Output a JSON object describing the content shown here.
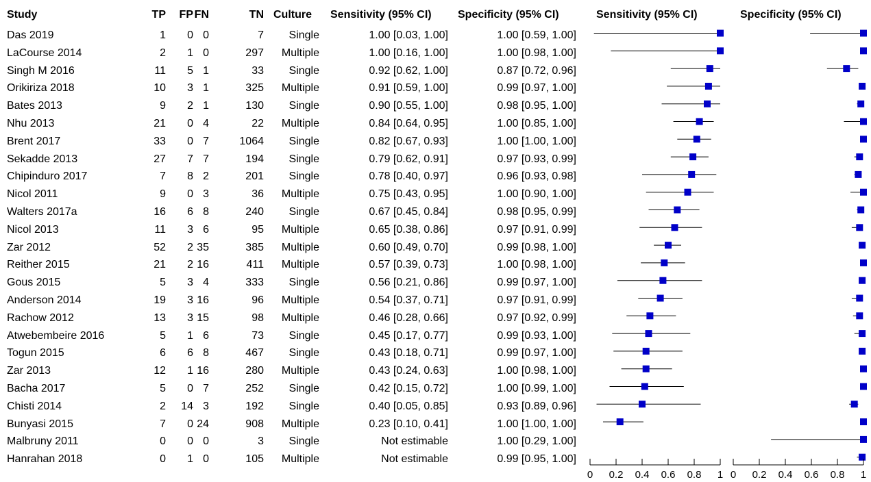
{
  "headers": {
    "study": "Study",
    "tp": "TP",
    "fp": "FP",
    "fn": "FN",
    "tn": "TN",
    "culture": "Culture",
    "sens_ci": "Sensitivity (95% CI)",
    "spec_ci": "Specificity (95% CI)",
    "sens_plot": "Sensitivity (95% CI)",
    "spec_plot": "Specificity (95% CI)"
  },
  "colors": {
    "marker": "#0000c8",
    "line": "#000000"
  },
  "chart_data": {
    "type": "forest",
    "axis_ticks": [
      "0",
      "0.2",
      "0.4",
      "0.6",
      "0.8",
      "1"
    ],
    "xlim": [
      0,
      1
    ],
    "rows": [
      {
        "study": "Das 2019",
        "tp": "1",
        "fp": "0",
        "fn": "0",
        "tn": "7",
        "culture": "Single",
        "sens_text": "1.00 [0.03, 1.00]",
        "spec_text": "1.00 [0.59, 1.00]",
        "sens": 1.0,
        "sens_lo": 0.03,
        "sens_hi": 1.0,
        "spec": 1.0,
        "spec_lo": 0.59,
        "spec_hi": 1.0
      },
      {
        "study": "LaCourse 2014",
        "tp": "2",
        "fp": "1",
        "fn": "0",
        "tn": "297",
        "culture": "Multiple",
        "sens_text": "1.00 [0.16, 1.00]",
        "spec_text": "1.00 [0.98, 1.00]",
        "sens": 1.0,
        "sens_lo": 0.16,
        "sens_hi": 1.0,
        "spec": 1.0,
        "spec_lo": 0.98,
        "spec_hi": 1.0
      },
      {
        "study": "Singh M 2016",
        "tp": "11",
        "fp": "5",
        "fn": "1",
        "tn": "33",
        "culture": "Single",
        "sens_text": "0.92 [0.62, 1.00]",
        "spec_text": "0.87 [0.72, 0.96]",
        "sens": 0.92,
        "sens_lo": 0.62,
        "sens_hi": 1.0,
        "spec": 0.87,
        "spec_lo": 0.72,
        "spec_hi": 0.96
      },
      {
        "study": "Orikiriza 2018",
        "tp": "10",
        "fp": "3",
        "fn": "1",
        "tn": "325",
        "culture": "Multiple",
        "sens_text": "0.91 [0.59, 1.00]",
        "spec_text": "0.99 [0.97, 1.00]",
        "sens": 0.91,
        "sens_lo": 0.59,
        "sens_hi": 1.0,
        "spec": 0.99,
        "spec_lo": 0.97,
        "spec_hi": 1.0
      },
      {
        "study": "Bates 2013",
        "tp": "9",
        "fp": "2",
        "fn": "1",
        "tn": "130",
        "culture": "Single",
        "sens_text": "0.90 [0.55, 1.00]",
        "spec_text": "0.98 [0.95, 1.00]",
        "sens": 0.9,
        "sens_lo": 0.55,
        "sens_hi": 1.0,
        "spec": 0.98,
        "spec_lo": 0.95,
        "spec_hi": 1.0
      },
      {
        "study": "Nhu 2013",
        "tp": "21",
        "fp": "0",
        "fn": "4",
        "tn": "22",
        "culture": "Multiple",
        "sens_text": "0.84 [0.64, 0.95]",
        "spec_text": "1.00 [0.85, 1.00]",
        "sens": 0.84,
        "sens_lo": 0.64,
        "sens_hi": 0.95,
        "spec": 1.0,
        "spec_lo": 0.85,
        "spec_hi": 1.0
      },
      {
        "study": "Brent 2017",
        "tp": "33",
        "fp": "0",
        "fn": "7",
        "tn": "1064",
        "culture": "Single",
        "sens_text": "0.82 [0.67, 0.93]",
        "spec_text": "1.00 [1.00, 1.00]",
        "sens": 0.82,
        "sens_lo": 0.67,
        "sens_hi": 0.93,
        "spec": 1.0,
        "spec_lo": 1.0,
        "spec_hi": 1.0
      },
      {
        "study": "Sekadde 2013",
        "tp": "27",
        "fp": "7",
        "fn": "7",
        "tn": "194",
        "culture": "Single",
        "sens_text": "0.79 [0.62, 0.91]",
        "spec_text": "0.97 [0.93, 0.99]",
        "sens": 0.79,
        "sens_lo": 0.62,
        "sens_hi": 0.91,
        "spec": 0.97,
        "spec_lo": 0.93,
        "spec_hi": 0.99
      },
      {
        "study": "Chipinduro 2017",
        "tp": "7",
        "fp": "8",
        "fn": "2",
        "tn": "201",
        "culture": "Single",
        "sens_text": "0.78 [0.40, 0.97]",
        "spec_text": "0.96 [0.93, 0.98]",
        "sens": 0.78,
        "sens_lo": 0.4,
        "sens_hi": 0.97,
        "spec": 0.96,
        "spec_lo": 0.93,
        "spec_hi": 0.98
      },
      {
        "study": "Nicol 2011",
        "tp": "9",
        "fp": "0",
        "fn": "3",
        "tn": "36",
        "culture": "Multiple",
        "sens_text": "0.75 [0.43, 0.95]",
        "spec_text": "1.00 [0.90, 1.00]",
        "sens": 0.75,
        "sens_lo": 0.43,
        "sens_hi": 0.95,
        "spec": 1.0,
        "spec_lo": 0.9,
        "spec_hi": 1.0
      },
      {
        "study": "Walters 2017a",
        "tp": "16",
        "fp": "6",
        "fn": "8",
        "tn": "240",
        "culture": "Single",
        "sens_text": "0.67 [0.45, 0.84]",
        "spec_text": "0.98 [0.95, 0.99]",
        "sens": 0.67,
        "sens_lo": 0.45,
        "sens_hi": 0.84,
        "spec": 0.98,
        "spec_lo": 0.95,
        "spec_hi": 0.99
      },
      {
        "study": "Nicol 2013",
        "tp": "11",
        "fp": "3",
        "fn": "6",
        "tn": "95",
        "culture": "Multiple",
        "sens_text": "0.65 [0.38, 0.86]",
        "spec_text": "0.97 [0.91, 0.99]",
        "sens": 0.65,
        "sens_lo": 0.38,
        "sens_hi": 0.86,
        "spec": 0.97,
        "spec_lo": 0.91,
        "spec_hi": 0.99
      },
      {
        "study": "Zar 2012",
        "tp": "52",
        "fp": "2",
        "fn": "35",
        "tn": "385",
        "culture": "Multiple",
        "sens_text": "0.60 [0.49, 0.70]",
        "spec_text": "0.99 [0.98, 1.00]",
        "sens": 0.6,
        "sens_lo": 0.49,
        "sens_hi": 0.7,
        "spec": 0.99,
        "spec_lo": 0.98,
        "spec_hi": 1.0
      },
      {
        "study": "Reither 2015",
        "tp": "21",
        "fp": "2",
        "fn": "16",
        "tn": "411",
        "culture": "Multiple",
        "sens_text": "0.57 [0.39, 0.73]",
        "spec_text": "1.00 [0.98, 1.00]",
        "sens": 0.57,
        "sens_lo": 0.39,
        "sens_hi": 0.73,
        "spec": 1.0,
        "spec_lo": 0.98,
        "spec_hi": 1.0
      },
      {
        "study": "Gous 2015",
        "tp": "5",
        "fp": "3",
        "fn": "4",
        "tn": "333",
        "culture": "Single",
        "sens_text": "0.56 [0.21, 0.86]",
        "spec_text": "0.99 [0.97, 1.00]",
        "sens": 0.56,
        "sens_lo": 0.21,
        "sens_hi": 0.86,
        "spec": 0.99,
        "spec_lo": 0.97,
        "spec_hi": 1.0
      },
      {
        "study": "Anderson 2014",
        "tp": "19",
        "fp": "3",
        "fn": "16",
        "tn": "96",
        "culture": "Multiple",
        "sens_text": "0.54 [0.37, 0.71]",
        "spec_text": "0.97 [0.91, 0.99]",
        "sens": 0.54,
        "sens_lo": 0.37,
        "sens_hi": 0.71,
        "spec": 0.97,
        "spec_lo": 0.91,
        "spec_hi": 0.99
      },
      {
        "study": "Rachow 2012",
        "tp": "13",
        "fp": "3",
        "fn": "15",
        "tn": "98",
        "culture": "Multiple",
        "sens_text": "0.46 [0.28, 0.66]",
        "spec_text": "0.97 [0.92, 0.99]",
        "sens": 0.46,
        "sens_lo": 0.28,
        "sens_hi": 0.66,
        "spec": 0.97,
        "spec_lo": 0.92,
        "spec_hi": 0.99
      },
      {
        "study": "Atwebembeire 2016",
        "tp": "5",
        "fp": "1",
        "fn": "6",
        "tn": "73",
        "culture": "Single",
        "sens_text": "0.45 [0.17, 0.77]",
        "spec_text": "0.99 [0.93, 1.00]",
        "sens": 0.45,
        "sens_lo": 0.17,
        "sens_hi": 0.77,
        "spec": 0.99,
        "spec_lo": 0.93,
        "spec_hi": 1.0
      },
      {
        "study": "Togun 2015",
        "tp": "6",
        "fp": "6",
        "fn": "8",
        "tn": "467",
        "culture": "Single",
        "sens_text": "0.43 [0.18, 0.71]",
        "spec_text": "0.99 [0.97, 1.00]",
        "sens": 0.43,
        "sens_lo": 0.18,
        "sens_hi": 0.71,
        "spec": 0.99,
        "spec_lo": 0.97,
        "spec_hi": 1.0
      },
      {
        "study": "Zar 2013",
        "tp": "12",
        "fp": "1",
        "fn": "16",
        "tn": "280",
        "culture": "Multiple",
        "sens_text": "0.43 [0.24, 0.63]",
        "spec_text": "1.00 [0.98, 1.00]",
        "sens": 0.43,
        "sens_lo": 0.24,
        "sens_hi": 0.63,
        "spec": 1.0,
        "spec_lo": 0.98,
        "spec_hi": 1.0
      },
      {
        "study": "Bacha 2017",
        "tp": "5",
        "fp": "0",
        "fn": "7",
        "tn": "252",
        "culture": "Single",
        "sens_text": "0.42 [0.15, 0.72]",
        "spec_text": "1.00 [0.99, 1.00]",
        "sens": 0.42,
        "sens_lo": 0.15,
        "sens_hi": 0.72,
        "spec": 1.0,
        "spec_lo": 0.99,
        "spec_hi": 1.0
      },
      {
        "study": "Chisti 2014",
        "tp": "2",
        "fp": "14",
        "fn": "3",
        "tn": "192",
        "culture": "Single",
        "sens_text": "0.40 [0.05, 0.85]",
        "spec_text": "0.93 [0.89, 0.96]",
        "sens": 0.4,
        "sens_lo": 0.05,
        "sens_hi": 0.85,
        "spec": 0.93,
        "spec_lo": 0.89,
        "spec_hi": 0.96
      },
      {
        "study": "Bunyasi 2015",
        "tp": "7",
        "fp": "0",
        "fn": "24",
        "tn": "908",
        "culture": "Multiple",
        "sens_text": "0.23 [0.10, 0.41]",
        "spec_text": "1.00 [1.00, 1.00]",
        "sens": 0.23,
        "sens_lo": 0.1,
        "sens_hi": 0.41,
        "spec": 1.0,
        "spec_lo": 1.0,
        "spec_hi": 1.0
      },
      {
        "study": "Malbruny 2011",
        "tp": "0",
        "fp": "0",
        "fn": "0",
        "tn": "3",
        "culture": "Single",
        "sens_text": "Not estimable",
        "spec_text": "1.00 [0.29, 1.00]",
        "sens": null,
        "sens_lo": null,
        "sens_hi": null,
        "spec": 1.0,
        "spec_lo": 0.29,
        "spec_hi": 1.0
      },
      {
        "study": "Hanrahan 2018",
        "tp": "0",
        "fp": "1",
        "fn": "0",
        "tn": "105",
        "culture": "Multiple",
        "sens_text": "Not estimable",
        "spec_text": "0.99 [0.95, 1.00]",
        "sens": null,
        "sens_lo": null,
        "sens_hi": null,
        "spec": 0.99,
        "spec_lo": 0.95,
        "spec_hi": 1.0
      }
    ]
  }
}
